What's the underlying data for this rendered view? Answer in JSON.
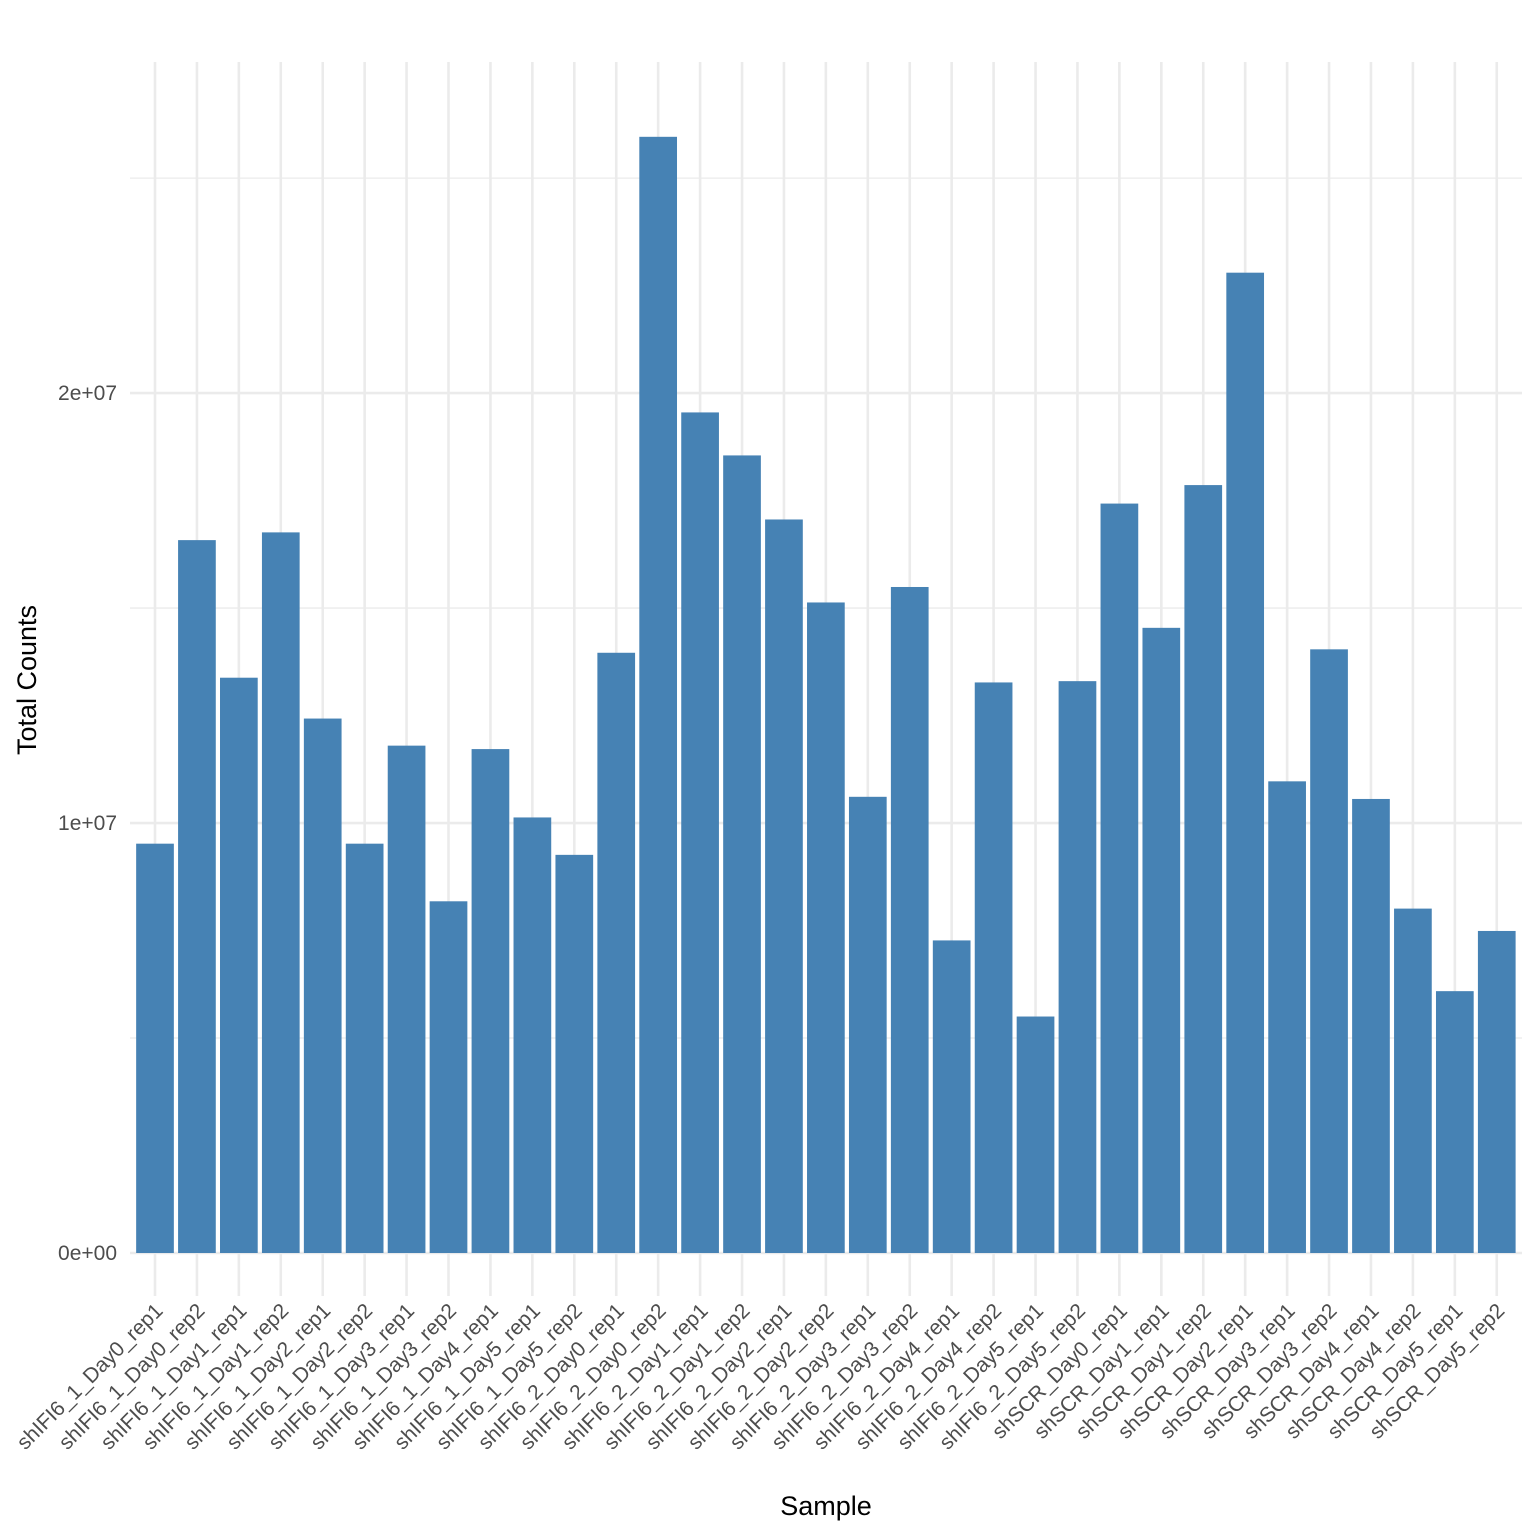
{
  "chart_data": {
    "type": "bar",
    "title": "",
    "xlabel": "Sample",
    "ylabel": "Total Counts",
    "ylim": [
      -1000000,
      27700000
    ],
    "grid": true,
    "bar_color": "#4682B4",
    "grid_color": "#EBEBEB",
    "y_ticks": [
      {
        "value": 0,
        "label": "0e+00"
      },
      {
        "value": 10000000,
        "label": "1e+07"
      },
      {
        "value": 20000000,
        "label": "2e+07"
      }
    ],
    "y_minor_ticks": [
      5000000,
      15000000,
      25000000
    ],
    "categories": [
      "shIFI6_1_Day0_rep1",
      "shIFI6_1_Day0_rep2",
      "shIFI6_1_Day1_rep1",
      "shIFI6_1_Day1_rep2",
      "shIFI6_1_Day2_rep1",
      "shIFI6_1_Day2_rep2",
      "shIFI6_1_Day3_rep1",
      "shIFI6_1_Day3_rep2",
      "shIFI6_1_Day4_rep1",
      "shIFI6_1_Day5_rep1",
      "shIFI6_1_Day5_rep2",
      "shIFI6_2_Day0_rep1",
      "shIFI6_2_Day0_rep2",
      "shIFI6_2_Day1_rep1",
      "shIFI6_2_Day1_rep2",
      "shIFI6_2_Day2_rep1",
      "shIFI6_2_Day2_rep2",
      "shIFI6_2_Day3_rep1",
      "shIFI6_2_Day3_rep2",
      "shIFI6_2_Day4_rep1",
      "shIFI6_2_Day4_rep2",
      "shIFI6_2_Day5_rep1",
      "shIFI6_2_Day5_rep2",
      "shSCR_Day0_rep1",
      "shSCR_Day1_rep1",
      "shSCR_Day1_rep2",
      "shSCR_Day2_rep1",
      "shSCR_Day3_rep1",
      "shSCR_Day3_rep2",
      "shSCR_Day4_rep1",
      "shSCR_Day4_rep2",
      "shSCR_Day5_rep1",
      "shSCR_Day5_rep2"
    ],
    "values": [
      9520000,
      16580000,
      13380000,
      16760000,
      12430000,
      9520000,
      11800000,
      8180000,
      11720000,
      10130000,
      9260000,
      13960000,
      25960000,
      19550000,
      18550000,
      17060000,
      15130000,
      10610000,
      15490000,
      7270000,
      13270000,
      5500000,
      13300000,
      17430000,
      14540000,
      17860000,
      22800000,
      10970000,
      14040000,
      10560000,
      8010000,
      6090000,
      7490000
    ]
  }
}
